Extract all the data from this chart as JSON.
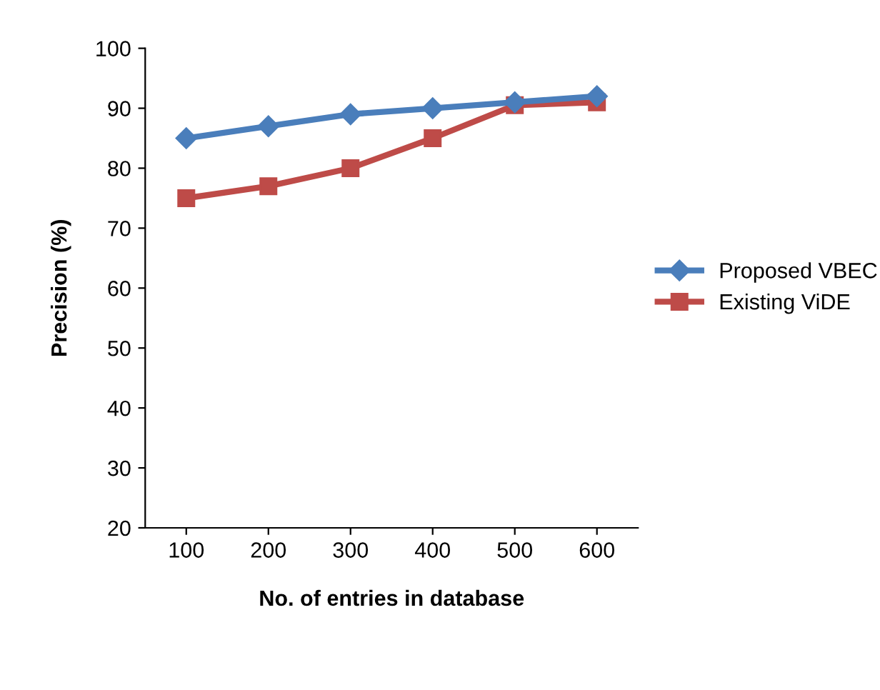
{
  "chart_data": {
    "type": "line",
    "xlabel": "No. of entries in database",
    "ylabel": "Precision (%)",
    "categories": [
      "100",
      "200",
      "300",
      "400",
      "500",
      "600"
    ],
    "ylim": [
      20,
      100
    ],
    "yticks": [
      20,
      30,
      40,
      50,
      60,
      70,
      80,
      90,
      100
    ],
    "grid": false,
    "legend": "right",
    "line_style": "solid",
    "series": [
      {
        "name": "Proposed VBEC",
        "color": "#4a7ebb",
        "marker": "diamond",
        "values": [
          85,
          87,
          89,
          90,
          91,
          92
        ]
      },
      {
        "name": "Existing ViDE",
        "color": "#be4b48",
        "marker": "square",
        "values": [
          75,
          77,
          80,
          85,
          90.5,
          91
        ]
      }
    ]
  }
}
